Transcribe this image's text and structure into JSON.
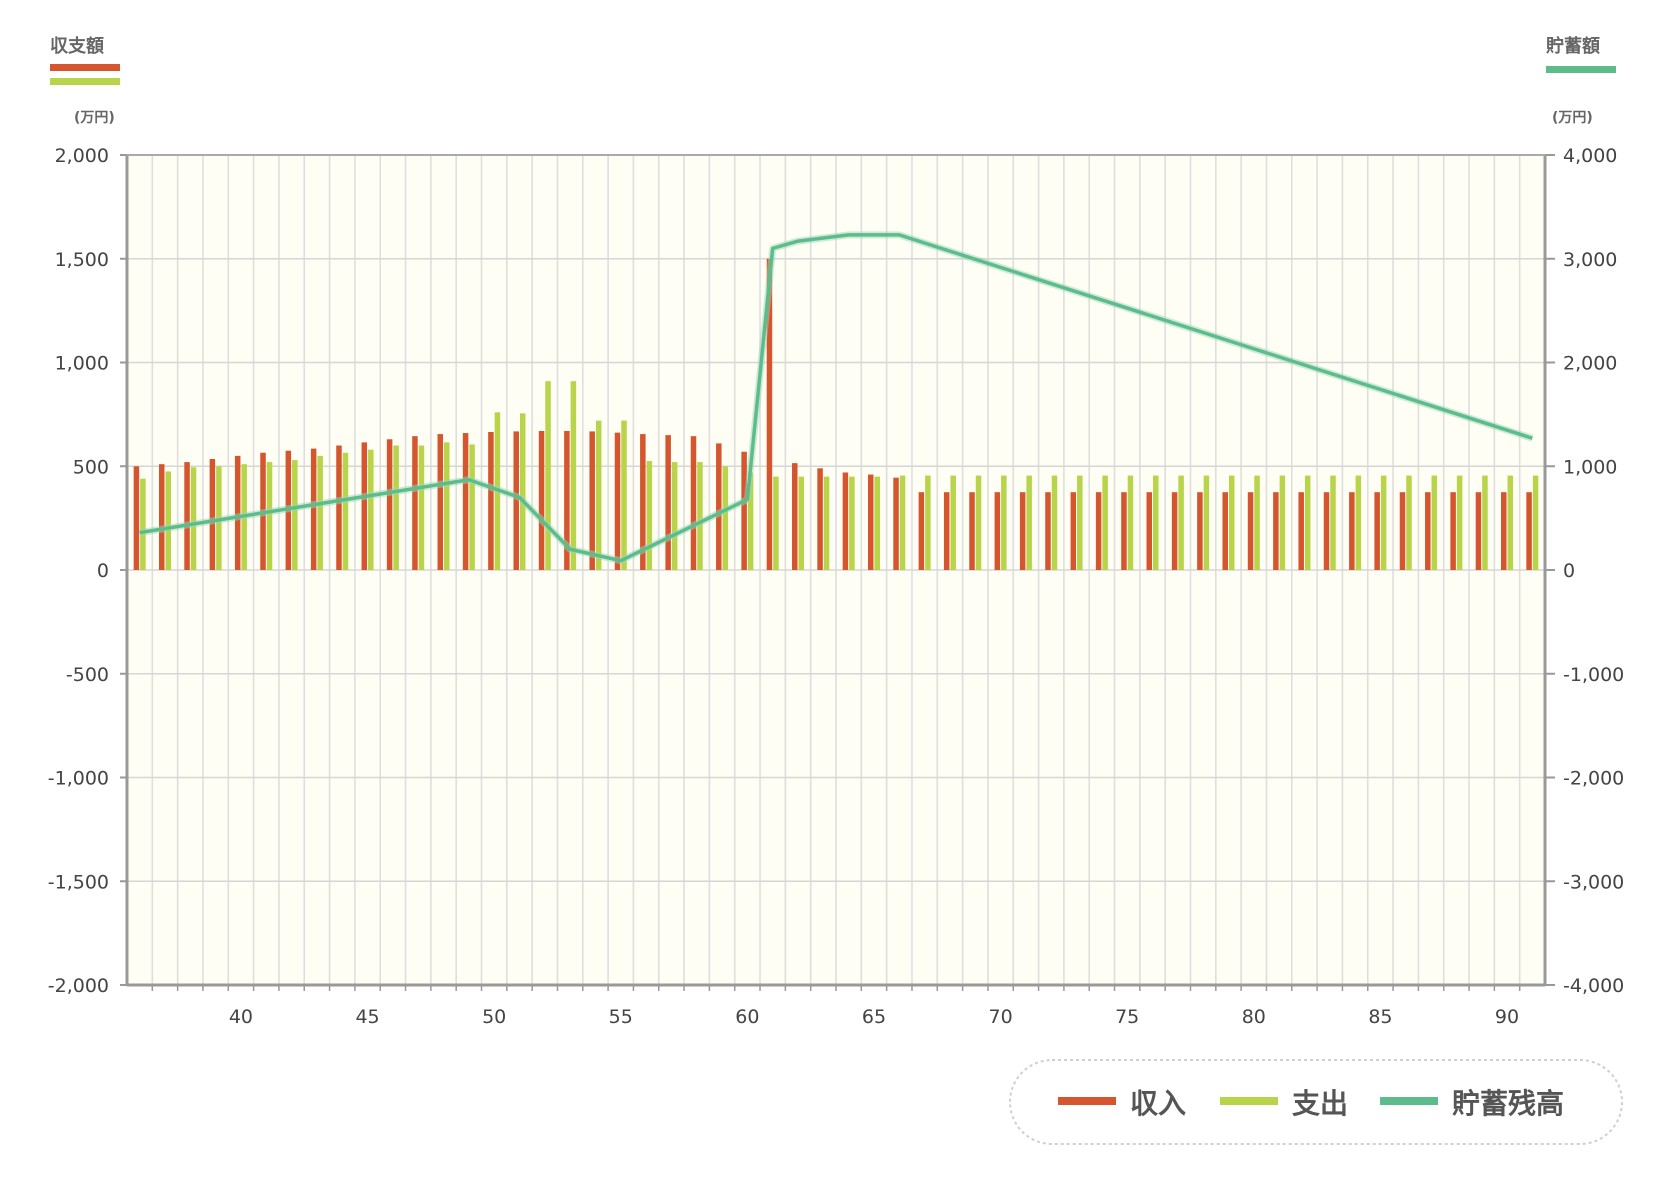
{
  "chart_data": {
    "type": "bar",
    "left_axis": {
      "title": "収支額",
      "unit": "(万円)",
      "range": [
        -2000,
        2000
      ],
      "tick_step": 500,
      "tick_labels": [
        "2,000",
        "1,500",
        "1,000",
        "500",
        "0",
        "-500",
        "-1,000",
        "-1,500",
        "-2,000"
      ]
    },
    "right_axis": {
      "title": "貯蓄額",
      "unit": "(万円)",
      "range": [
        -4000,
        4000
      ],
      "tick_step": 1000,
      "tick_labels": [
        "4,000",
        "3,000",
        "2,000",
        "1,000",
        "0",
        "-1,000",
        "-2,000",
        "-3,000",
        "-4,000"
      ]
    },
    "x_range": [
      36,
      91
    ],
    "x_tick_labels": [
      "40",
      "45",
      "50",
      "55",
      "60",
      "65",
      "70",
      "75",
      "80",
      "85",
      "90"
    ],
    "x_tick_values": [
      40,
      45,
      50,
      55,
      60,
      65,
      70,
      75,
      80,
      85,
      90
    ],
    "grid": true,
    "legend_position": "bottom-right",
    "x": [
      36,
      37,
      38,
      39,
      40,
      41,
      42,
      43,
      44,
      45,
      46,
      47,
      48,
      49,
      50,
      51,
      52,
      53,
      54,
      55,
      56,
      57,
      58,
      59,
      60,
      61,
      62,
      63,
      64,
      65,
      66,
      67,
      68,
      69,
      70,
      71,
      72,
      73,
      74,
      75,
      76,
      77,
      78,
      79,
      80,
      81,
      82,
      83,
      84,
      85,
      86,
      87,
      88,
      89,
      90,
      91
    ],
    "series": [
      {
        "name": "収入",
        "kind": "bar",
        "axis": "left",
        "color": "#d4552e",
        "values": [
          500,
          510,
          520,
          535,
          550,
          565,
          575,
          585,
          600,
          615,
          630,
          645,
          655,
          660,
          665,
          668,
          670,
          670,
          668,
          662,
          655,
          650,
          645,
          610,
          570,
          1500,
          515,
          490,
          470,
          460,
          445,
          375,
          375,
          375,
          375,
          375,
          375,
          375,
          375,
          375,
          375,
          375,
          375,
          375,
          375,
          375,
          375,
          375,
          375,
          375,
          375,
          375,
          375,
          375,
          375,
          375
        ]
      },
      {
        "name": "支出",
        "kind": "bar",
        "axis": "left",
        "color": "#b7d44a",
        "values": [
          440,
          475,
          495,
          500,
          510,
          520,
          530,
          550,
          565,
          580,
          600,
          600,
          615,
          605,
          760,
          755,
          910,
          910,
          720,
          720,
          525,
          520,
          520,
          500,
          470,
          450,
          450,
          450,
          450,
          450,
          455,
          455,
          455,
          455,
          455,
          455,
          455,
          455,
          455,
          455,
          455,
          455,
          455,
          455,
          455,
          455,
          455,
          455,
          455,
          455,
          455,
          455,
          455,
          455,
          455,
          455
        ]
      },
      {
        "name": "貯蓄残高",
        "kind": "line",
        "axis": "right",
        "color": "#5cbc8c",
        "x": [
          36,
          49,
          51,
          53,
          55,
          60,
          61,
          62,
          64,
          66,
          91
        ],
        "values": [
          360,
          870,
          700,
          200,
          90,
          680,
          3100,
          3170,
          3230,
          3230,
          1270
        ]
      }
    ]
  },
  "legend": {
    "income": "収入",
    "expense": "支出",
    "savings": "貯蓄残高"
  }
}
